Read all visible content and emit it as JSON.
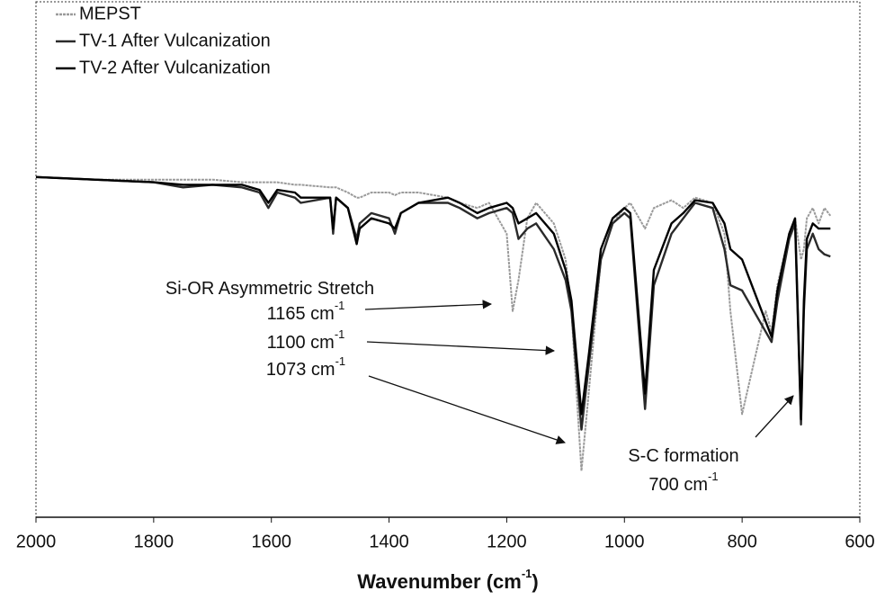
{
  "chart_data": {
    "type": "line",
    "x_label": {
      "text": "Wavenumber (cm",
      "sup": "-1",
      "after": ")"
    },
    "xlim": [
      2000,
      600
    ],
    "xticks": [
      2000,
      1800,
      1600,
      1400,
      1200,
      1000,
      800,
      600
    ],
    "ylim": [
      0,
      100
    ],
    "legend": "upper left",
    "x": [
      2000,
      1900,
      1800,
      1750,
      1700,
      1650,
      1620,
      1605,
      1590,
      1560,
      1550,
      1500,
      1495,
      1490,
      1470,
      1455,
      1450,
      1430,
      1400,
      1390,
      1380,
      1350,
      1300,
      1280,
      1250,
      1230,
      1200,
      1190,
      1180,
      1165,
      1150,
      1120,
      1100,
      1090,
      1073,
      1060,
      1040,
      1020,
      1000,
      990,
      965,
      950,
      920,
      900,
      880,
      850,
      830,
      820,
      800,
      780,
      760,
      750,
      740,
      720,
      710,
      700,
      695,
      690,
      680,
      670,
      660,
      650
    ],
    "series": [
      {
        "name": "MEPST",
        "color": "#9a9a9a",
        "values": [
          66,
          65.5,
          65.5,
          65.5,
          65.5,
          65,
          65,
          65,
          65,
          64.5,
          64.5,
          64,
          64,
          64,
          63,
          62,
          62,
          63,
          63,
          62.5,
          63,
          63,
          62,
          61,
          60,
          61,
          55,
          40,
          46,
          58,
          61,
          57,
          50,
          40,
          9,
          25,
          50,
          57,
          60,
          61,
          56,
          60,
          61.5,
          60,
          62,
          61,
          55,
          40,
          20,
          30,
          40,
          36,
          45,
          55,
          58,
          50,
          52,
          58,
          60,
          57,
          60,
          58.5
        ]
      },
      {
        "name": "TV-1 After Vulcanization",
        "color": "#2a2a2a",
        "values": [
          66,
          65.5,
          65,
          64,
          64.5,
          64,
          63,
          60,
          63,
          62,
          61,
          62,
          55,
          62,
          60,
          54,
          57,
          59,
          58,
          55,
          59,
          61,
          61,
          60,
          58,
          59,
          60,
          59,
          54,
          56,
          57,
          52,
          46,
          40,
          17,
          30,
          50,
          57,
          59,
          58,
          21,
          45,
          55,
          58,
          61,
          60,
          52,
          45,
          44,
          40,
          36,
          34,
          42,
          54,
          57,
          18,
          40,
          52,
          55,
          52,
          51,
          50.6
        ]
      },
      {
        "name": "TV-2 After Vulcanization",
        "color": "#000000",
        "values": [
          66,
          65.5,
          65,
          64.5,
          64.5,
          64.5,
          63.5,
          61,
          63.5,
          63,
          62,
          62,
          56,
          62,
          60,
          53,
          56,
          58,
          57,
          56,
          59,
          61,
          62,
          61,
          59,
          60,
          61,
          60,
          57,
          58,
          59,
          55,
          48,
          42,
          20,
          32,
          52,
          58,
          60,
          59,
          24,
          48,
          57,
          59,
          61.5,
          61,
          57,
          52,
          50,
          44,
          38,
          35,
          44,
          55,
          58,
          19,
          42,
          54,
          57,
          56,
          56,
          56
        ]
      }
    ],
    "annotations": [
      {
        "text": "Si-OR Asymmetric Stretch"
      },
      {
        "text": "1165 cm",
        "sup": "-1"
      },
      {
        "text": "1100 cm",
        "sup": "-1"
      },
      {
        "text": "1073 cm",
        "sup": "-1"
      },
      {
        "text": "S-C formation"
      },
      {
        "text": "700 cm",
        "sup": "-1"
      }
    ]
  }
}
